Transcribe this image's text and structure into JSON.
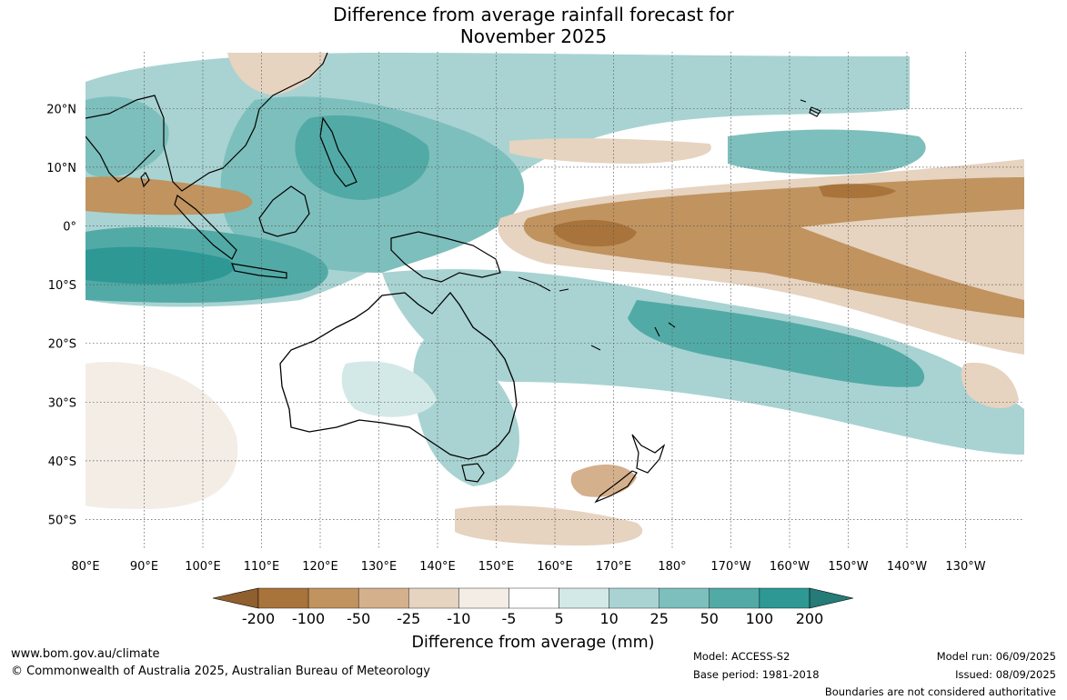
{
  "title": {
    "line1": "Difference from average rainfall forecast for",
    "line2": "November 2025"
  },
  "map": {
    "lon_labels": [
      "80°E",
      "90°E",
      "100°E",
      "110°E",
      "120°E",
      "130°E",
      "140°E",
      "150°E",
      "160°E",
      "170°E",
      "180°",
      "170°W",
      "160°W",
      "150°W",
      "140°W",
      "130°W"
    ],
    "lat_labels": [
      "20°N",
      "10°N",
      "0°",
      "10°S",
      "20°S",
      "30°S",
      "40°S",
      "50°S"
    ]
  },
  "colorbar": {
    "title": "Difference from average (mm)",
    "tick_labels": [
      "-200",
      "-100",
      "-50",
      "-25",
      "-10",
      "-5",
      "5",
      "10",
      "25",
      "50",
      "100",
      "200"
    ],
    "colors": [
      "#8f5f2e",
      "#a8743c",
      "#c0935f",
      "#d4b08c",
      "#e6d3c0",
      "#f3ede6",
      "#ffffff",
      "#d3e9e8",
      "#a8d3d2",
      "#7dbfbc",
      "#52aaa6",
      "#2e9894",
      "#247b77"
    ]
  },
  "footer": {
    "website": "www.bom.gov.au/climate",
    "copyright": "© Commonwealth of Australia 2025, Australian Bureau of Meteorology",
    "model": "Model: ACCESS-S2",
    "base_period": "Base period: 1981-2018",
    "model_run": "Model run: 06/09/2025",
    "issued": "Issued: 08/09/2025",
    "disclaimer": "Boundaries are not considered authoritative"
  }
}
